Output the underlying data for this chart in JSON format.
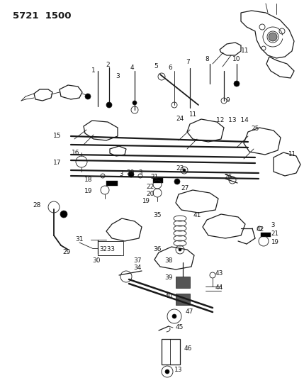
{
  "title": "5721  1500",
  "bg_color": "#ffffff",
  "line_color": "#1a1a1a",
  "title_fontsize": 9.5,
  "label_fontsize": 6.5,
  "figsize": [
    4.29,
    5.33
  ],
  "dpi": 100
}
